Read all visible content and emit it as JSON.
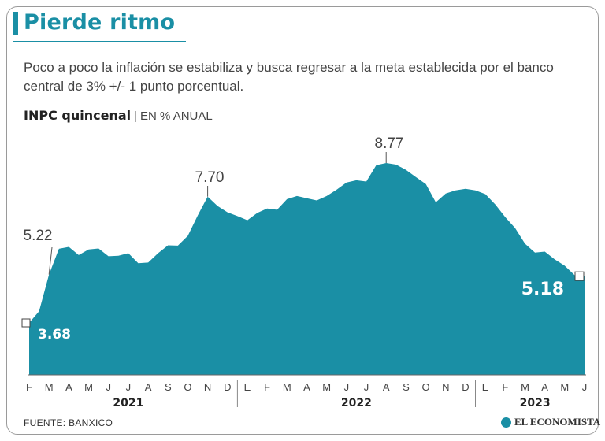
{
  "title": "Pierde ritmo",
  "subtitle": "Poco a poco la inflación se estabiliza y busca regresar a la meta establecida por el banco central de 3% +/- 1 punto porcentual.",
  "chart_head": {
    "name": "INPC quincenal",
    "unit": "EN % ANUAL"
  },
  "source": "FUENTE: BANXICO",
  "brand": "EL ECONOMISTA",
  "colors": {
    "accent": "#1a8fa5",
    "area": "#1a8fa5"
  },
  "chart_data": {
    "type": "area",
    "title": "INPC quincenal",
    "ylabel": "EN % ANUAL",
    "ylim": [
      0,
      9.5
    ],
    "grid": false,
    "x_month_labels": [
      "F",
      "M",
      "A",
      "M",
      "J",
      "J",
      "A",
      "S",
      "O",
      "N",
      "D",
      "E",
      "F",
      "M",
      "A",
      "M",
      "J",
      "J",
      "A",
      "S",
      "O",
      "N",
      "D",
      "E",
      "F",
      "M",
      "A",
      "M",
      "J"
    ],
    "x_years": [
      "2021",
      "2022",
      "2023"
    ],
    "x": [
      "Feb 2021 1Q",
      "Feb 2021 2Q",
      "Mar 2021 1Q",
      "Mar 2021 2Q",
      "Abr 2021 1Q",
      "Abr 2021 2Q",
      "May 2021 1Q",
      "May 2021 2Q",
      "Jun 2021 1Q",
      "Jun 2021 2Q",
      "Jul 2021 1Q",
      "Jul 2021 2Q",
      "Ago 2021 1Q",
      "Ago 2021 2Q",
      "Sep 2021 1Q",
      "Sep 2021 2Q",
      "Oct 2021 1Q",
      "Oct 2021 2Q",
      "Nov 2021 1Q",
      "Nov 2021 2Q",
      "Dic 2021 1Q",
      "Dic 2021 2Q",
      "Ene 2022 1Q",
      "Ene 2022 2Q",
      "Feb 2022 1Q",
      "Feb 2022 2Q",
      "Mar 2022 1Q",
      "Mar 2022 2Q",
      "Abr 2022 1Q",
      "Abr 2022 2Q",
      "May 2022 1Q",
      "May 2022 2Q",
      "Jun 2022 1Q",
      "Jun 2022 2Q",
      "Jul 2022 1Q",
      "Jul 2022 2Q",
      "Ago 2022 1Q",
      "Ago 2022 2Q",
      "Sep 2022 1Q",
      "Sep 2022 2Q",
      "Oct 2022 1Q",
      "Oct 2022 2Q",
      "Nov 2022 1Q",
      "Nov 2022 2Q",
      "Dic 2022 1Q",
      "Dic 2022 2Q",
      "Ene 2023 1Q",
      "Ene 2023 2Q",
      "Feb 2023 1Q",
      "Feb 2023 2Q",
      "Mar 2023 1Q",
      "Mar 2023 2Q",
      "Abr 2023 1Q",
      "Abr 2023 2Q",
      "May 2023 1Q",
      "May 2023 2Q",
      "Jun 2023 1Q"
    ],
    "values": [
      3.68,
      4.05,
      5.22,
      6.04,
      6.1,
      5.84,
      6.02,
      6.05,
      5.8,
      5.82,
      5.9,
      5.58,
      5.6,
      5.9,
      6.15,
      6.14,
      6.45,
      7.1,
      7.7,
      7.4,
      7.2,
      7.08,
      6.95,
      7.18,
      7.32,
      7.28,
      7.62,
      7.72,
      7.65,
      7.58,
      7.72,
      7.92,
      8.15,
      8.22,
      8.18,
      8.7,
      8.77,
      8.72,
      8.55,
      8.32,
      8.1,
      7.52,
      7.8,
      7.9,
      7.95,
      7.9,
      7.78,
      7.45,
      7.05,
      6.7,
      6.2,
      5.92,
      5.95,
      5.7,
      5.5,
      5.2,
      5.18
    ],
    "annotations": [
      {
        "label": "3.68",
        "index": 0
      },
      {
        "label": "5.22",
        "index": 2
      },
      {
        "label": "7.70",
        "index": 18
      },
      {
        "label": "8.77",
        "index": 36
      },
      {
        "label": "5.18",
        "index": 56
      }
    ]
  }
}
